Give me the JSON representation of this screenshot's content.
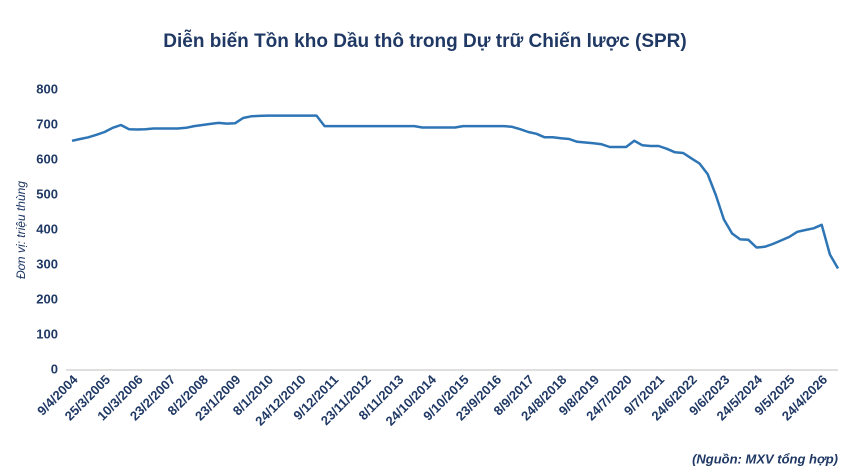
{
  "chart_data": {
    "type": "line",
    "title": "Diễn biến Tồn kho Dầu thô trong Dự trữ Chiến lược (SPR)",
    "y_label": "Đơn vị: triệu thùng",
    "source": "(Nguồn: MXV tổng hợp)",
    "categories": [
      "9/4/2004",
      null,
      null,
      null,
      "25/3/2005",
      null,
      null,
      null,
      "10/3/2006",
      null,
      null,
      null,
      "23/2/2007",
      null,
      null,
      null,
      "8/2/2008",
      null,
      null,
      null,
      "23/1/2009",
      null,
      null,
      null,
      "8/1/2010",
      null,
      null,
      null,
      "24/12/2010",
      null,
      null,
      null,
      "9/12/2011",
      null,
      null,
      null,
      "23/11/2012",
      null,
      null,
      null,
      "8/11/2013",
      null,
      null,
      null,
      "24/10/2014",
      null,
      null,
      null,
      "9/10/2015",
      null,
      null,
      null,
      "23/9/2016",
      null,
      null,
      null,
      "8/9/2017",
      null,
      null,
      null,
      "24/8/2018",
      null,
      null,
      null,
      "9/8/2019",
      null,
      null,
      null,
      "24/7/2020",
      null,
      null,
      null,
      "9/7/2021",
      null,
      null,
      null,
      "24/6/2022",
      null,
      null,
      null,
      "9/6/2023",
      null,
      null,
      null,
      "24/5/2024",
      null,
      null,
      null,
      "9/5/2025",
      null,
      null,
      null,
      "24/4/2026",
      null,
      null
    ],
    "series": [
      {
        "name": "SPR",
        "color": "#2e75b6",
        "values": [
          655,
          660,
          665,
          672,
          680,
          692,
          700,
          688,
          687,
          688,
          690,
          690,
          690,
          690,
          692,
          697,
          700,
          703,
          706,
          704,
          705,
          720,
          725,
          726,
          727,
          727,
          727,
          727,
          727,
          727,
          727,
          697,
          697,
          697,
          697,
          697,
          697,
          697,
          697,
          697,
          697,
          697,
          697,
          693,
          693,
          693,
          693,
          693,
          697,
          697,
          697,
          697,
          697,
          697,
          695,
          688,
          680,
          675,
          665,
          665,
          662,
          660,
          652,
          650,
          648,
          645,
          637,
          637,
          637,
          655,
          642,
          640,
          640,
          632,
          622,
          620,
          605,
          590,
          560,
          500,
          430,
          390,
          373,
          372,
          350,
          352,
          360,
          370,
          380,
          395,
          400,
          405,
          415,
          330,
          290
        ]
      }
    ],
    "ylim": [
      0,
      800
    ],
    "yticks": [
      0,
      100,
      200,
      300,
      400,
      500,
      600,
      700,
      800
    ],
    "grid": false
  }
}
